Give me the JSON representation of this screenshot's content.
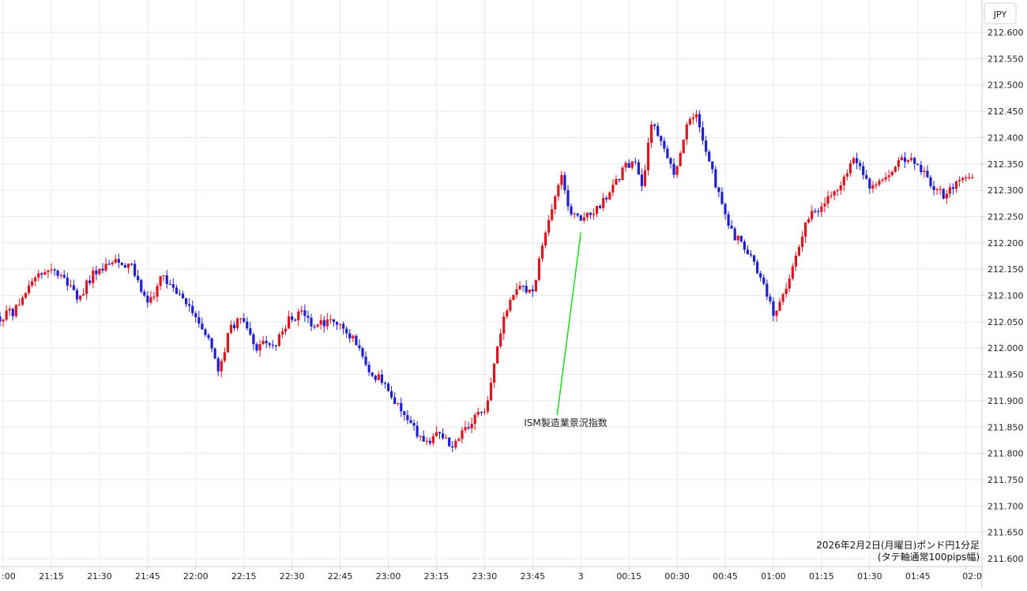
{
  "chart_data": {
    "type": "candlestick",
    "currency_label": "JPY",
    "caption_lines": [
      "2026年2月2日(月曜日)ポンド円1分足",
      "(タテ軸通常100pips幅)"
    ],
    "annotation": {
      "text": "ISM製造業景況指数",
      "time": "00:00",
      "price": 212.22
    },
    "ylim": [
      211.58,
      212.63
    ],
    "y_ticks": [
      "211.600",
      "211.650",
      "211.700",
      "211.750",
      "211.800",
      "211.850",
      "211.900",
      "211.950",
      "212.000",
      "212.050",
      "212.100",
      "212.150",
      "212.200",
      "212.250",
      "212.300",
      "212.350",
      "212.400",
      "212.450",
      "212.500",
      "212.550",
      "212.600"
    ],
    "x_tick_labels": [
      ":00",
      "21:15",
      "21:30",
      "21:45",
      "22:00",
      "22:15",
      "22:30",
      "22:45",
      "23:00",
      "23:15",
      "23:30",
      "23:45",
      "3",
      "00:15",
      "00:30",
      "00:45",
      "01:00",
      "01:15",
      "01:30",
      "01:45",
      "02:0"
    ],
    "x_range_minutes": [
      "20:59",
      "02:05"
    ],
    "grid": true,
    "up_color": "#e0141e",
    "down_color": "#1e1ed2",
    "annotation_line_color": "#22dd22",
    "anchors": [
      [
        "20:59",
        212.06
      ],
      [
        "21:03",
        212.07
      ],
      [
        "21:08",
        212.12
      ],
      [
        "21:13",
        212.15
      ],
      [
        "21:19",
        212.14
      ],
      [
        "21:23",
        212.09
      ],
      [
        "21:28",
        212.14
      ],
      [
        "21:35",
        212.17
      ],
      [
        "21:40",
        212.15
      ],
      [
        "21:45",
        212.09
      ],
      [
        "21:49",
        212.13
      ],
      [
        "21:55",
        212.11
      ],
      [
        "22:01",
        212.04
      ],
      [
        "22:05",
        212.0
      ],
      [
        "22:07",
        211.95
      ],
      [
        "22:10",
        212.03
      ],
      [
        "22:14",
        212.06
      ],
      [
        "22:19",
        212.0
      ],
      [
        "22:25",
        212.01
      ],
      [
        "22:29",
        212.06
      ],
      [
        "22:33",
        212.07
      ],
      [
        "22:37",
        212.04
      ],
      [
        "22:42",
        212.05
      ],
      [
        "22:45",
        212.04
      ],
      [
        "22:50",
        212.01
      ],
      [
        "22:55",
        211.95
      ],
      [
        "22:59",
        211.93
      ],
      [
        "23:04",
        211.88
      ],
      [
        "23:08",
        211.84
      ],
      [
        "23:12",
        211.82
      ],
      [
        "23:16",
        211.84
      ],
      [
        "23:20",
        211.81
      ],
      [
        "23:24",
        211.85
      ],
      [
        "23:27",
        211.87
      ],
      [
        "23:30",
        211.88
      ],
      [
        "23:34",
        212.0
      ],
      [
        "23:36",
        212.07
      ],
      [
        "23:40",
        212.12
      ],
      [
        "23:42",
        212.11
      ],
      [
        "23:45",
        212.11
      ],
      [
        "23:48",
        212.21
      ],
      [
        "23:51",
        212.26
      ],
      [
        "23:54",
        212.33
      ],
      [
        "23:56",
        212.27
      ],
      [
        "00:00",
        212.24
      ],
      [
        "00:03",
        212.26
      ],
      [
        "00:07",
        212.28
      ],
      [
        "00:12",
        212.33
      ],
      [
        "00:16",
        212.36
      ],
      [
        "00:19",
        212.31
      ],
      [
        "00:22",
        212.43
      ],
      [
        "00:26",
        212.38
      ],
      [
        "00:29",
        212.33
      ],
      [
        "00:33",
        212.43
      ],
      [
        "00:36",
        212.44
      ],
      [
        "00:39",
        212.37
      ],
      [
        "00:43",
        212.29
      ],
      [
        "00:47",
        212.22
      ],
      [
        "00:51",
        212.19
      ],
      [
        "00:56",
        212.14
      ],
      [
        "01:00",
        212.06
      ],
      [
        "01:03",
        212.1
      ],
      [
        "01:06",
        212.16
      ],
      [
        "01:10",
        212.24
      ],
      [
        "01:15",
        212.27
      ],
      [
        "01:20",
        212.3
      ],
      [
        "01:25",
        212.36
      ],
      [
        "01:30",
        212.3
      ],
      [
        "01:35",
        212.33
      ],
      [
        "01:40",
        212.36
      ],
      [
        "01:45",
        212.35
      ],
      [
        "01:49",
        212.31
      ],
      [
        "01:53",
        212.29
      ],
      [
        "01:57",
        212.32
      ],
      [
        "02:00",
        212.32
      ]
    ]
  }
}
